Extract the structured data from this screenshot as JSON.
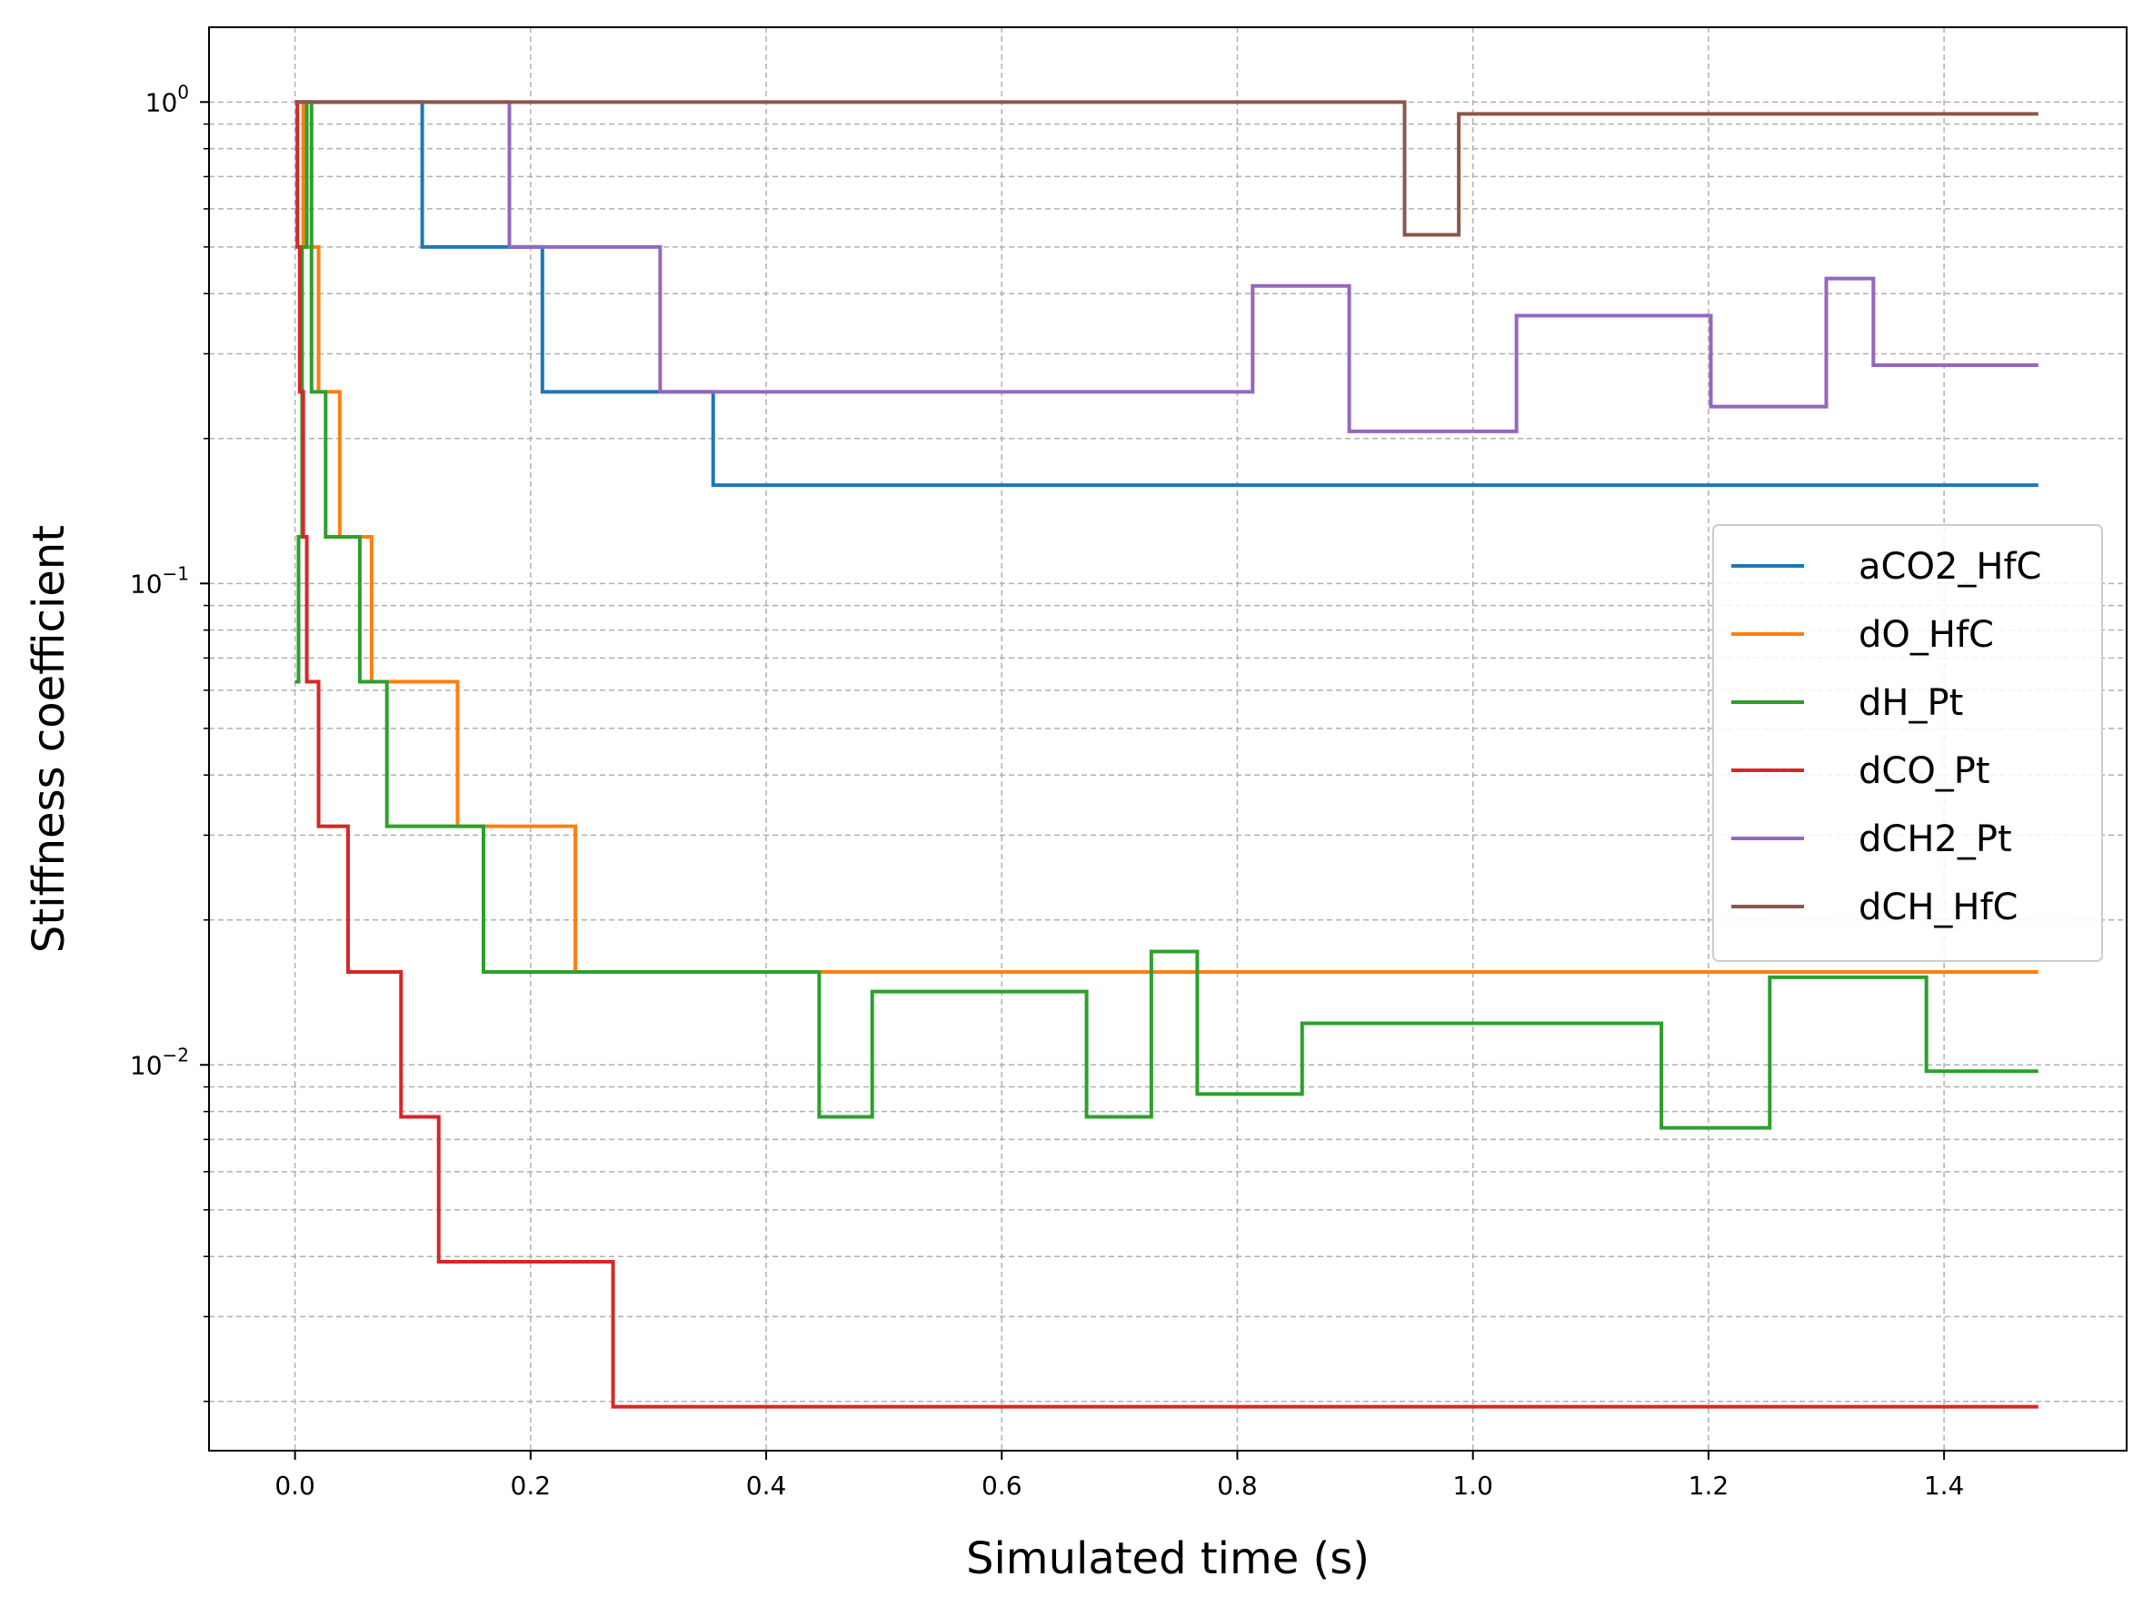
{
  "chart_data": {
    "type": "line",
    "step": true,
    "xlabel": "Simulated time (s)",
    "ylabel": "Stiffness coefficient",
    "xlim": [
      -0.073,
      1.555
    ],
    "ylim": [
      0.00158,
      1.43
    ],
    "yscale": "log",
    "xticks": [
      0.0,
      0.2,
      0.4,
      0.6,
      0.8,
      1.0,
      1.2,
      1.4
    ],
    "xtick_labels": [
      "0.0",
      "0.2",
      "0.4",
      "0.6",
      "0.8",
      "1.0",
      "1.2",
      "1.4"
    ],
    "ytick_labels": [
      {
        "value": 1,
        "base": "10",
        "exp": "0"
      },
      {
        "value": 0.1,
        "base": "10",
        "exp": "−1"
      },
      {
        "value": 0.01,
        "base": "10",
        "exp": "−2"
      }
    ],
    "grid": true,
    "legend_position": "center-right",
    "series": [
      {
        "name": "aCO2_HfC",
        "color": "#1f77b4",
        "x": [
          0.0,
          0.108,
          0.21,
          0.355,
          1.48
        ],
        "y": [
          1.0,
          0.5,
          0.25,
          0.16,
          0.16
        ]
      },
      {
        "name": "dO_HfC",
        "color": "#ff7f0e",
        "x": [
          0.0,
          0.007,
          0.02,
          0.038,
          0.065,
          0.138,
          0.238,
          1.48
        ],
        "y": [
          1.0,
          0.5,
          0.25,
          0.125,
          0.0625,
          0.0313,
          0.0156,
          0.0156
        ]
      },
      {
        "name": "dH_Pt",
        "color": "#2ca02c",
        "x": [
          0.0,
          0.003,
          0.006,
          0.01,
          0.014,
          0.026,
          0.055,
          0.078,
          0.16,
          0.445,
          0.49,
          0.672,
          0.727,
          0.766,
          0.855,
          1.16,
          1.252,
          1.385,
          1.48
        ],
        "y": [
          0.0625,
          0.125,
          0.5,
          1.0,
          0.25,
          0.125,
          0.0625,
          0.0313,
          0.0156,
          0.0078,
          0.0142,
          0.0078,
          0.0172,
          0.0087,
          0.0122,
          0.0074,
          0.0152,
          0.0097,
          0.0097
        ]
      },
      {
        "name": "dCO_Pt",
        "color": "#d62728",
        "x": [
          0.0,
          0.002,
          0.004,
          0.007,
          0.01,
          0.02,
          0.045,
          0.09,
          0.122,
          0.27,
          1.48
        ],
        "y": [
          1.0,
          0.5,
          0.25,
          0.125,
          0.0625,
          0.0313,
          0.0156,
          0.0078,
          0.0039,
          0.00195,
          0.00195
        ]
      },
      {
        "name": "dCH2_Pt",
        "color": "#9467bd",
        "x": [
          0.0,
          0.182,
          0.31,
          0.813,
          0.895,
          1.037,
          1.202,
          1.3,
          1.34,
          1.48
        ],
        "y": [
          1.0,
          0.5,
          0.25,
          0.415,
          0.207,
          0.36,
          0.233,
          0.43,
          0.284,
          0.284
        ]
      },
      {
        "name": "dCH_HfC",
        "color": "#8c564b",
        "x": [
          0.0,
          0.942,
          0.988,
          1.48
        ],
        "y": [
          1.0,
          0.53,
          0.945,
          0.945
        ]
      }
    ]
  }
}
